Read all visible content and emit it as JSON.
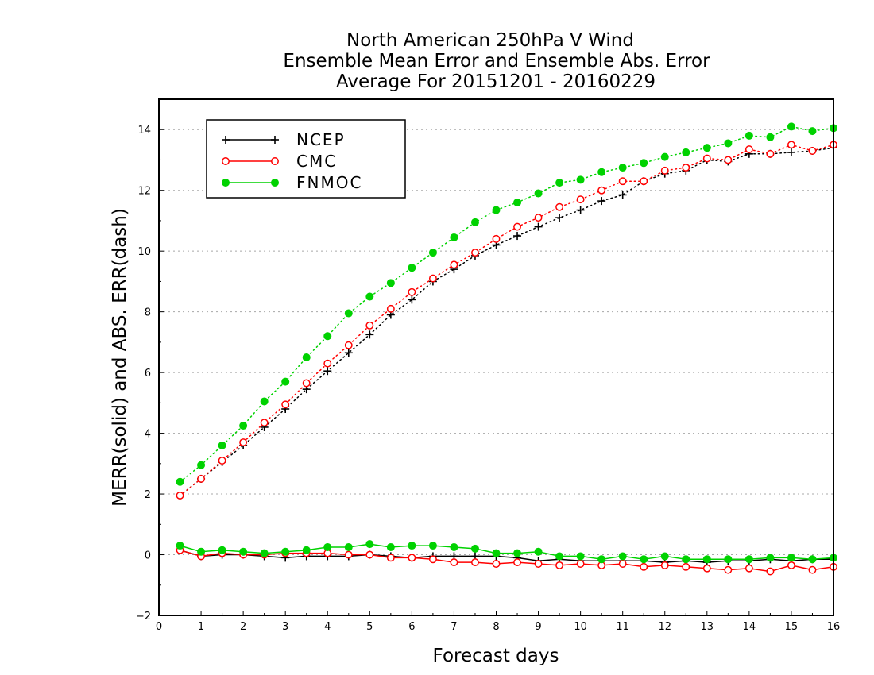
{
  "chart_data": {
    "type": "line",
    "title_lines": [
      "North American 250hPa V Wind",
      "Ensemble Mean Error and Ensemble Abs. Error",
      "Average For 20151201 - 20160229"
    ],
    "xlabel": "Forecast days",
    "ylabel": "MERR(solid) and ABS. ERR(dash)",
    "xlim": [
      0,
      16
    ],
    "ylim": [
      -2,
      15
    ],
    "x_ticks": [
      0,
      1,
      2,
      3,
      4,
      5,
      6,
      7,
      8,
      9,
      10,
      11,
      12,
      13,
      14,
      15,
      16
    ],
    "y_ticks": [
      -2,
      0,
      2,
      4,
      6,
      8,
      10,
      12,
      14
    ],
    "grid": "horizontal dotted",
    "legend_position": "top-left",
    "x": [
      0.5,
      1,
      1.5,
      2,
      2.5,
      3,
      3.5,
      4,
      4.5,
      5,
      5.5,
      6,
      6.5,
      7,
      7.5,
      8,
      8.5,
      9,
      9.5,
      10,
      10.5,
      11,
      11.5,
      12,
      12.5,
      13,
      13.5,
      14,
      14.5,
      15,
      15.5,
      16
    ],
    "series": [
      {
        "name": "NCEP",
        "color": "#000000",
        "marker": "plus",
        "abs_err": [
          1.95,
          2.5,
          3.05,
          3.6,
          4.2,
          4.8,
          5.45,
          6.05,
          6.65,
          7.25,
          7.9,
          8.4,
          9.0,
          9.4,
          9.85,
          10.2,
          10.5,
          10.8,
          11.1,
          11.35,
          11.65,
          11.85,
          12.3,
          12.55,
          12.65,
          13.0,
          12.95,
          13.2,
          13.2,
          13.25,
          13.3,
          13.4
        ],
        "mean_err": [
          0.15,
          -0.05,
          0.0,
          0.0,
          -0.05,
          -0.1,
          -0.05,
          -0.05,
          -0.05,
          0.0,
          -0.05,
          -0.1,
          -0.05,
          -0.05,
          -0.05,
          -0.05,
          -0.1,
          -0.2,
          -0.15,
          -0.2,
          -0.2,
          -0.2,
          -0.2,
          -0.25,
          -0.2,
          -0.25,
          -0.2,
          -0.2,
          -0.15,
          -0.2,
          -0.15,
          -0.15
        ]
      },
      {
        "name": "CMC",
        "color": "#ff0000",
        "marker": "open-circle",
        "abs_err": [
          1.95,
          2.5,
          3.1,
          3.7,
          4.35,
          4.95,
          5.65,
          6.3,
          6.9,
          7.55,
          8.1,
          8.65,
          9.1,
          9.55,
          9.95,
          10.4,
          10.8,
          11.1,
          11.45,
          11.7,
          12.0,
          12.3,
          12.3,
          12.65,
          12.75,
          13.05,
          13.0,
          13.35,
          13.2,
          13.5,
          13.3,
          13.5
        ],
        "mean_err": [
          0.15,
          -0.05,
          0.05,
          0.0,
          0.0,
          0.05,
          0.05,
          0.05,
          0.0,
          0.0,
          -0.1,
          -0.1,
          -0.15,
          -0.25,
          -0.25,
          -0.3,
          -0.25,
          -0.3,
          -0.35,
          -0.3,
          -0.35,
          -0.3,
          -0.4,
          -0.35,
          -0.4,
          -0.45,
          -0.5,
          -0.45,
          -0.55,
          -0.35,
          -0.5,
          -0.4
        ]
      },
      {
        "name": "FNMOC",
        "color": "#00d200",
        "marker": "filled-circle",
        "abs_err": [
          2.4,
          2.95,
          3.6,
          4.25,
          5.05,
          5.7,
          6.5,
          7.2,
          7.95,
          8.5,
          8.95,
          9.45,
          9.95,
          10.45,
          10.95,
          11.35,
          11.6,
          11.9,
          12.25,
          12.35,
          12.6,
          12.75,
          12.9,
          13.1,
          13.25,
          13.4,
          13.55,
          13.8,
          13.75,
          14.1,
          13.95,
          14.05
        ],
        "mean_err": [
          0.3,
          0.1,
          0.15,
          0.1,
          0.05,
          0.1,
          0.15,
          0.25,
          0.25,
          0.35,
          0.25,
          0.3,
          0.3,
          0.25,
          0.2,
          0.05,
          0.05,
          0.1,
          -0.05,
          -0.05,
          -0.15,
          -0.05,
          -0.15,
          -0.05,
          -0.15,
          -0.15,
          -0.15,
          -0.15,
          -0.1,
          -0.1,
          -0.15,
          -0.1
        ]
      }
    ]
  }
}
